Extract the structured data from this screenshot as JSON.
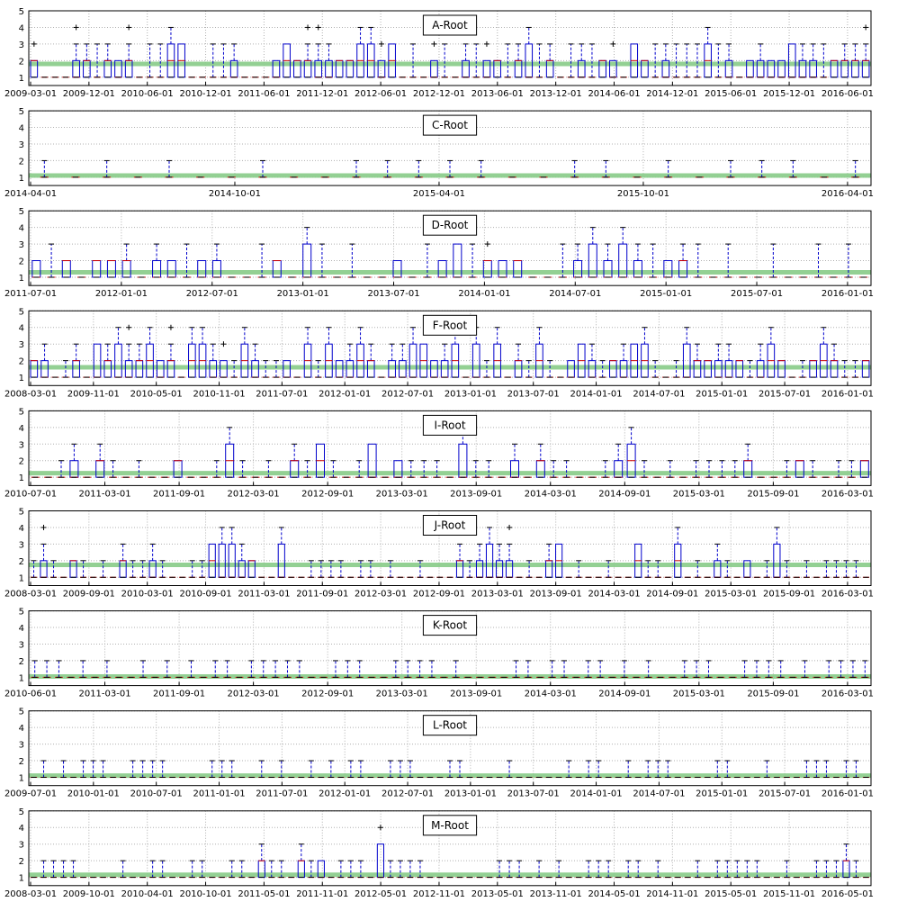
{
  "figure": {
    "style": {
      "box_color": "#0000cc",
      "median_color": "#cc0000",
      "outlier_color": "#000000",
      "overall_line_color": "#88cc88",
      "grid_color": "#b0b0b0"
    }
  },
  "chart_data": [
    {
      "type": "box",
      "title": "A-Root",
      "ylim": [
        0.5,
        5
      ],
      "yticks": [
        "1",
        "2",
        "3",
        "4",
        "5"
      ],
      "xticks": [
        "2009-03-01",
        "2009-12-01",
        "2010-06-01",
        "2010-12-01",
        "2011-06-01",
        "2011-12-01",
        "2012-06-01",
        "2012-12-01",
        "2013-06-01",
        "2013-12-01",
        "2014-06-01",
        "2014-12-01",
        "2015-06-01",
        "2015-12-01",
        "2016-06-01"
      ],
      "overall": 1.8,
      "n": 80,
      "seed": 1,
      "base": 1,
      "highFrac": 0.6,
      "whiskerTop": 3
    },
    {
      "type": "box",
      "title": "C-Root",
      "ylim": [
        0.5,
        5
      ],
      "yticks": [
        "1",
        "2",
        "3",
        "4",
        "5"
      ],
      "xticks": [
        "2014-04-01",
        "2014-10-01",
        "2015-04-01",
        "2015-10-01",
        "2016-04-01"
      ],
      "overall": 1.1,
      "n": 27,
      "seed": 2,
      "base": 1,
      "highFrac": 0.0,
      "whiskerTop": 2
    },
    {
      "type": "box",
      "title": "D-Root",
      "ylim": [
        0.5,
        5
      ],
      "yticks": [
        "1",
        "2",
        "3",
        "4",
        "5"
      ],
      "xticks": [
        "2011-07-01",
        "2012-01-01",
        "2012-07-01",
        "2013-01-01",
        "2013-07-01",
        "2014-01-01",
        "2014-07-01",
        "2015-01-01",
        "2015-07-01",
        "2016-01-01"
      ],
      "overall": 1.3,
      "n": 56,
      "seed": 3,
      "base": 1,
      "highFrac": 0.45,
      "whiskerTop": 3
    },
    {
      "type": "box",
      "title": "F-Root",
      "ylim": [
        0.5,
        5
      ],
      "yticks": [
        "1",
        "2",
        "3",
        "4",
        "5"
      ],
      "xticks": [
        "2008-03-01",
        "2009-11-01",
        "2010-05-01",
        "2010-11-01",
        "2011-07-01",
        "2012-01-01",
        "2012-07-01",
        "2013-01-01",
        "2013-07-01",
        "2014-01-01",
        "2014-07-01",
        "2015-01-01",
        "2015-07-01",
        "2016-01-01"
      ],
      "overall": 1.6,
      "n": 80,
      "seed": 4,
      "base": 1,
      "highFrac": 0.7,
      "whiskerTop": 2
    },
    {
      "type": "box",
      "title": "I-Root",
      "ylim": [
        0.5,
        5
      ],
      "yticks": [
        "1",
        "2",
        "3",
        "4",
        "5"
      ],
      "xticks": [
        "2010-07-01",
        "2011-03-01",
        "2011-09-01",
        "2012-03-01",
        "2012-09-01",
        "2013-03-01",
        "2013-09-01",
        "2014-03-01",
        "2014-09-01",
        "2015-03-01",
        "2015-09-01",
        "2016-03-01"
      ],
      "overall": 1.25,
      "n": 65,
      "seed": 5,
      "base": 1,
      "highFrac": 0.3,
      "whiskerTop": 2
    },
    {
      "type": "box",
      "title": "J-Root",
      "ylim": [
        0.5,
        5
      ],
      "yticks": [
        "1",
        "2",
        "3",
        "4",
        "5"
      ],
      "xticks": [
        "2008-03-01",
        "2009-09-01",
        "2010-03-01",
        "2010-09-01",
        "2011-03-01",
        "2011-09-01",
        "2012-03-01",
        "2012-09-01",
        "2013-03-01",
        "2013-09-01",
        "2014-03-01",
        "2014-09-01",
        "2015-03-01",
        "2015-09-01",
        "2016-03-01"
      ],
      "overall": 1.75,
      "n": 85,
      "seed": 6,
      "base": 1,
      "highFrac": 0.2,
      "whiskerTop": 2
    },
    {
      "type": "box",
      "title": "K-Root",
      "ylim": [
        0.5,
        5
      ],
      "yticks": [
        "1",
        "2",
        "3",
        "4",
        "5"
      ],
      "xticks": [
        "2010-06-01",
        "2011-03-01",
        "2011-09-01",
        "2012-03-01",
        "2012-09-01",
        "2013-03-01",
        "2013-09-01",
        "2014-03-01",
        "2014-09-01",
        "2015-03-01",
        "2015-09-01",
        "2016-03-01"
      ],
      "overall": 1.05,
      "n": 70,
      "seed": 7,
      "base": 1,
      "highFrac": 0.0,
      "whiskerTop": 2
    },
    {
      "type": "box",
      "title": "L-Root",
      "ylim": [
        0.5,
        5
      ],
      "yticks": [
        "1",
        "2",
        "3",
        "4",
        "5"
      ],
      "xticks": [
        "2009-07-01",
        "2010-01-01",
        "2010-07-01",
        "2011-01-01",
        "2011-07-01",
        "2012-01-01",
        "2012-07-01",
        "2013-01-01",
        "2013-07-01",
        "2014-01-01",
        "2014-07-01",
        "2015-01-01",
        "2015-07-01",
        "2016-01-01"
      ],
      "overall": 1.1,
      "n": 85,
      "seed": 8,
      "base": 1,
      "highFrac": 0.0,
      "whiskerTop": 2
    },
    {
      "type": "box",
      "title": "M-Root",
      "ylim": [
        0.5,
        5
      ],
      "yticks": [
        "1",
        "2",
        "3",
        "4",
        "5"
      ],
      "xticks": [
        "2008-03-01",
        "2009-10-01",
        "2010-04-01",
        "2010-10-01",
        "2011-05-01",
        "2011-11-01",
        "2012-05-01",
        "2012-11-01",
        "2013-05-01",
        "2013-11-01",
        "2014-05-01",
        "2014-11-01",
        "2015-05-01",
        "2015-11-01",
        "2016-05-01"
      ],
      "overall": 1.15,
      "n": 85,
      "seed": 9,
      "base": 1,
      "highFrac": 0.05,
      "whiskerTop": 2
    }
  ]
}
